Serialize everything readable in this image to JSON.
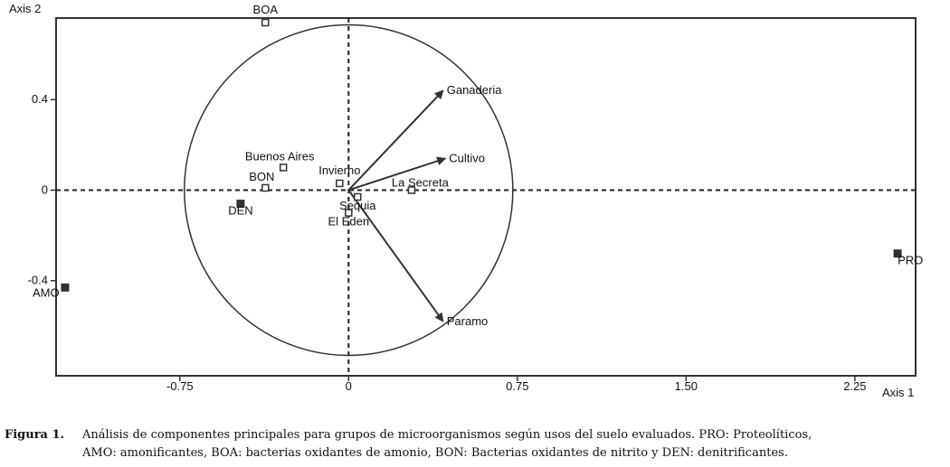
{
  "chart_data": {
    "type": "scatter",
    "title": "",
    "xlabel": "Axis 1",
    "ylabel": "Axis 2",
    "xlim": [
      -1.3,
      2.52
    ],
    "ylim": [
      -0.82,
      0.76
    ],
    "x_ticks": [
      {
        "value": -0.75,
        "label": "-0.75"
      },
      {
        "value": 0,
        "label": "0"
      },
      {
        "value": 0.75,
        "label": "0.75"
      },
      {
        "value": 1.5,
        "label": "1.50"
      },
      {
        "value": 2.25,
        "label": "2.25"
      }
    ],
    "y_ticks": [
      {
        "value": 0.4,
        "label": "0.4"
      },
      {
        "value": 0,
        "label": "0"
      },
      {
        "value": -0.4,
        "label": "-0.4"
      }
    ],
    "circle_radius": 0.73,
    "points": [
      {
        "label": "BOA",
        "x": -0.37,
        "y": 0.74,
        "size": "small",
        "anchor": "above"
      },
      {
        "label": "Buenos Aires",
        "x": -0.29,
        "y": 0.1,
        "size": "small",
        "anchor": "above-left"
      },
      {
        "label": "BON",
        "x": -0.37,
        "y": 0.01,
        "size": "small",
        "anchor": "above-left"
      },
      {
        "label": "DEN",
        "x": -0.48,
        "y": -0.06,
        "size": "large",
        "anchor": "below-left"
      },
      {
        "label": "Invierno",
        "x": -0.04,
        "y": 0.03,
        "size": "small",
        "anchor": "above"
      },
      {
        "label": "La Secreta",
        "x": 0.28,
        "y": 0.0,
        "size": "small",
        "anchor": "above-right"
      },
      {
        "label": "Sequia",
        "x": 0.04,
        "y": -0.03,
        "size": "small",
        "anchor": "below"
      },
      {
        "label": "El Eden",
        "x": 0.0,
        "y": -0.1,
        "size": "small",
        "anchor": "below"
      },
      {
        "label": "AMO",
        "x": -1.26,
        "y": -0.43,
        "size": "large",
        "anchor": "left"
      },
      {
        "label": "PRO",
        "x": 2.44,
        "y": -0.28,
        "size": "large",
        "anchor": "below-right"
      }
    ],
    "vectors": [
      {
        "label": "Ganaderia",
        "x": 0.42,
        "y": 0.44
      },
      {
        "label": "Cultivo",
        "x": 0.43,
        "y": 0.14
      },
      {
        "label": "Paramo",
        "x": 0.42,
        "y": -0.58
      }
    ],
    "grid": false,
    "legend": "none"
  },
  "caption": {
    "label": "Figura 1.",
    "line1": "Análisis de componentes principales para grupos de microorganismos según usos del suelo evaluados. PRO: Proteolíticos,",
    "line2": "AMO: amonificantes, BOA: bacterias oxidantes de amonio, BON: Bacterias oxidantes de nitrito y DEN: denitrificantes."
  }
}
